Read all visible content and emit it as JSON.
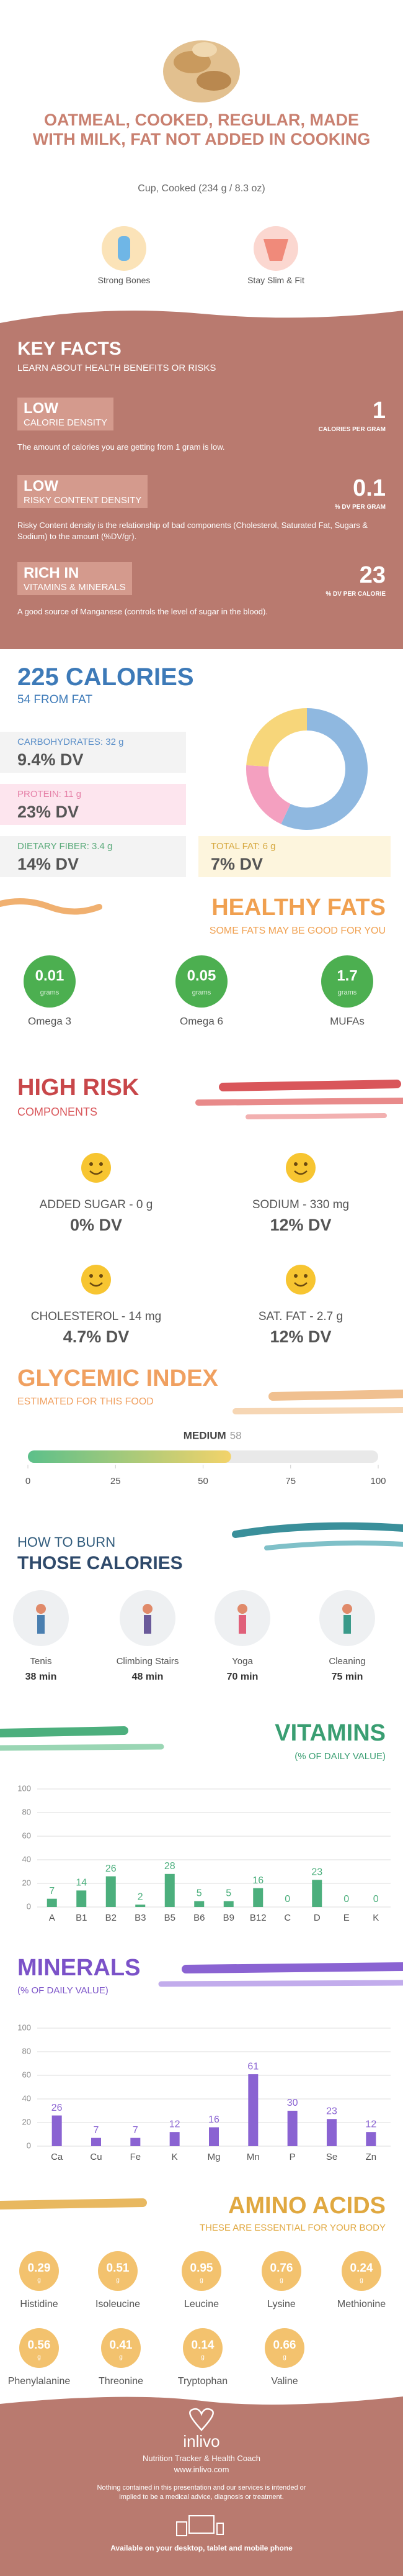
{
  "header": {
    "title": "OATMEAL, COOKED, REGULAR, MADE WITH MILK, FAT NOT ADDED IN COOKING",
    "serving": "Cup, Cooked (234 g / 8.3 oz)",
    "badges": [
      "Strong Bones",
      "Stay Slim & Fit"
    ]
  },
  "key_facts": {
    "title": "KEY FACTS",
    "subtitle": "LEARN ABOUT HEALTH BENEFITS OR RISKS",
    "items": [
      {
        "level": "LOW",
        "label": "CALORIE DENSITY",
        "value": "1",
        "unit": "CALORIES PER GRAM",
        "text": "The amount of calories you are getting from 1 gram is low."
      },
      {
        "level": "LOW",
        "label": "RISKY CONTENT DENSITY",
        "value": "0.1",
        "unit": "% DV PER GRAM",
        "text": "Risky Content density is the relationship of bad components (Cholesterol, Saturated Fat, Sugars & Sodium) to the amount (%DV/gr)."
      },
      {
        "level": "RICH IN",
        "label": "VITAMINS & MINERALS",
        "value": "23",
        "unit": "% DV PER CALORIE",
        "text": "A good source of Manganese (controls the level of sugar in the blood)."
      }
    ]
  },
  "calories": {
    "title": "225 CALORIES",
    "subtitle": "54 FROM FAT",
    "nutrients": [
      {
        "name": "CARBOHYDRATES: 32 g",
        "dv": "9.4% DV"
      },
      {
        "name": "PROTEIN: 11 g",
        "dv": "23% DV"
      },
      {
        "name": "DIETARY FIBER: 3.4 g",
        "dv": "14% DV"
      },
      {
        "name": "TOTAL FAT: 6 g",
        "dv": "7% DV"
      }
    ]
  },
  "healthy_fats": {
    "title": "HEALTHY FATS",
    "subtitle": "SOME FATS MAY BE GOOD FOR YOU",
    "unit": "grams",
    "items": [
      {
        "value": "0.01",
        "name": "Omega 3"
      },
      {
        "value": "0.05",
        "name": "Omega 6"
      },
      {
        "value": "1.7",
        "name": "MUFAs"
      }
    ]
  },
  "high_risk": {
    "title": "HIGH RISK",
    "subtitle": "COMPONENTS",
    "items": [
      {
        "name": "ADDED SUGAR - 0 g",
        "dv": "0% DV"
      },
      {
        "name": "SODIUM - 330 mg",
        "dv": "12% DV"
      },
      {
        "name": "CHOLESTEROL - 14 mg",
        "dv": "4.7% DV"
      },
      {
        "name": "SAT. FAT - 2.7 g",
        "dv": "12% DV"
      }
    ]
  },
  "glycemic": {
    "title": "GLYCEMIC INDEX",
    "subtitle": "ESTIMATED FOR THIS FOOD",
    "level": "MEDIUM",
    "value": 58,
    "xlim": [
      0,
      100
    ],
    "xticks": [
      0,
      25,
      50,
      75,
      100
    ]
  },
  "burn": {
    "title": "HOW TO BURN",
    "subtitle": "THOSE CALORIES",
    "activities": [
      {
        "name": "Tenis",
        "time": "38 min"
      },
      {
        "name": "Climbing Stairs",
        "time": "48 min"
      },
      {
        "name": "Yoga",
        "time": "70 min"
      },
      {
        "name": "Cleaning",
        "time": "75 min"
      }
    ]
  },
  "chart_data": [
    {
      "type": "pie",
      "values": [
        57,
        19,
        24
      ],
      "colors": [
        "#8fb8e0",
        "#f4a0c0",
        "#f7d67a"
      ]
    },
    {
      "type": "bar",
      "title": "VITAMINS",
      "subtitle": "(% OF DAILY VALUE)",
      "categories": [
        "A",
        "B1",
        "B2",
        "B3",
        "B5",
        "B6",
        "B9",
        "B12",
        "C",
        "D",
        "E",
        "K"
      ],
      "values": [
        7,
        14,
        26,
        2,
        28,
        5,
        5,
        16,
        0,
        23,
        0,
        0
      ],
      "color": "#4caf7d",
      "ylim": [
        0,
        100
      ],
      "yticks": [
        0,
        20,
        40,
        60,
        80,
        100
      ],
      "grid": true
    },
    {
      "type": "bar",
      "title": "MINERALS",
      "subtitle": "(% OF DAILY VALUE)",
      "categories": [
        "Ca",
        "Cu",
        "Fe",
        "K",
        "Mg",
        "Mn",
        "P",
        "Se",
        "Zn"
      ],
      "values": [
        26,
        7,
        7,
        12,
        16,
        61,
        30,
        23,
        12
      ],
      "color": "#8a63d2",
      "ylim": [
        0,
        100
      ],
      "yticks": [
        0,
        20,
        40,
        60,
        80,
        100
      ],
      "grid": true
    }
  ],
  "amino_acids": {
    "title": "AMINO ACIDS",
    "subtitle": "THESE ARE ESSENTIAL FOR YOUR BODY",
    "unit": "g",
    "items": [
      {
        "name": "Histidine",
        "value": "0.29"
      },
      {
        "name": "Isoleucine",
        "value": "0.51"
      },
      {
        "name": "Leucine",
        "value": "0.95"
      },
      {
        "name": "Lysine",
        "value": "0.76"
      },
      {
        "name": "Methionine",
        "value": "0.24"
      },
      {
        "name": "Phenylalanine",
        "value": "0.56"
      },
      {
        "name": "Threonine",
        "value": "0.41"
      },
      {
        "name": "Tryptophan",
        "value": "0.14"
      },
      {
        "name": "Valine",
        "value": "0.66"
      }
    ]
  },
  "footer": {
    "brand": "inlivo",
    "tagline": "Nutrition Tracker & Health Coach",
    "url": "www.inlivo.com",
    "disclaimer": "Nothing contained in this presentation and our services is intended or implied to be a medical advice, diagnosis or treatment.",
    "available": "Available on your desktop, tablet and mobile phone"
  }
}
